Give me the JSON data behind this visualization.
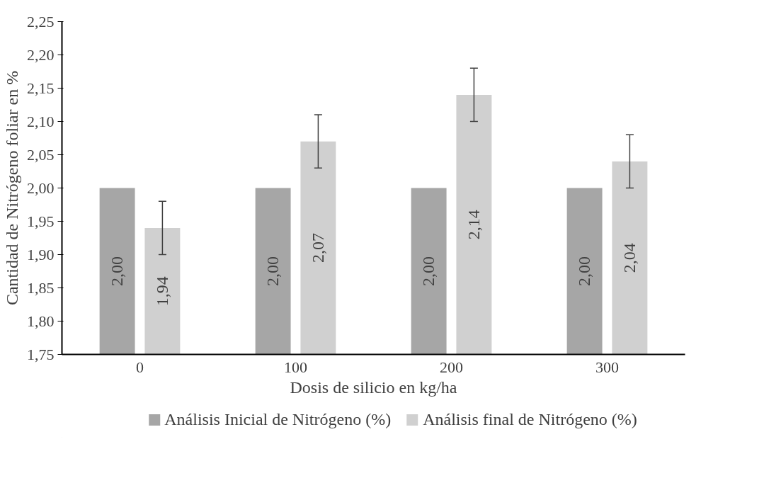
{
  "chart_data": {
    "type": "bar",
    "xlabel": "Dosis de silicio en kg/ha",
    "ylabel": "Cantidad de Nitrógeno foliar en %",
    "categories": [
      "0",
      "100",
      "200",
      "300"
    ],
    "series": [
      {
        "name": "Análisis Inicial de Nitrógeno (%)",
        "color": "#a6a6a6",
        "values": [
          2.0,
          2.0,
          2.0,
          2.0
        ],
        "value_labels": [
          "2,00",
          "2,00",
          "2,00",
          "2,00"
        ]
      },
      {
        "name": "Análisis final de Nitrógeno (%)",
        "color": "#d0d0d0",
        "values": [
          1.94,
          2.07,
          2.14,
          2.04
        ],
        "value_labels": [
          "1,94",
          "2,07",
          "2,14",
          "2,04"
        ],
        "errors": [
          0.04,
          0.04,
          0.04,
          0.04
        ]
      }
    ],
    "ylim": [
      1.75,
      2.25
    ],
    "yticks": [
      {
        "value": 1.75,
        "label": "1,75"
      },
      {
        "value": 1.8,
        "label": "1,80"
      },
      {
        "value": 1.85,
        "label": "1,85"
      },
      {
        "value": 1.9,
        "label": "1,90"
      },
      {
        "value": 1.95,
        "label": "1,95"
      },
      {
        "value": 2.0,
        "label": "2,00"
      },
      {
        "value": 2.05,
        "label": "2,05"
      },
      {
        "value": 2.1,
        "label": "2,10"
      },
      {
        "value": 2.15,
        "label": "2,15"
      },
      {
        "value": 2.2,
        "label": "2,20"
      },
      {
        "value": 2.25,
        "label": "2,25"
      }
    ],
    "grid": false,
    "legend": "bottom"
  }
}
